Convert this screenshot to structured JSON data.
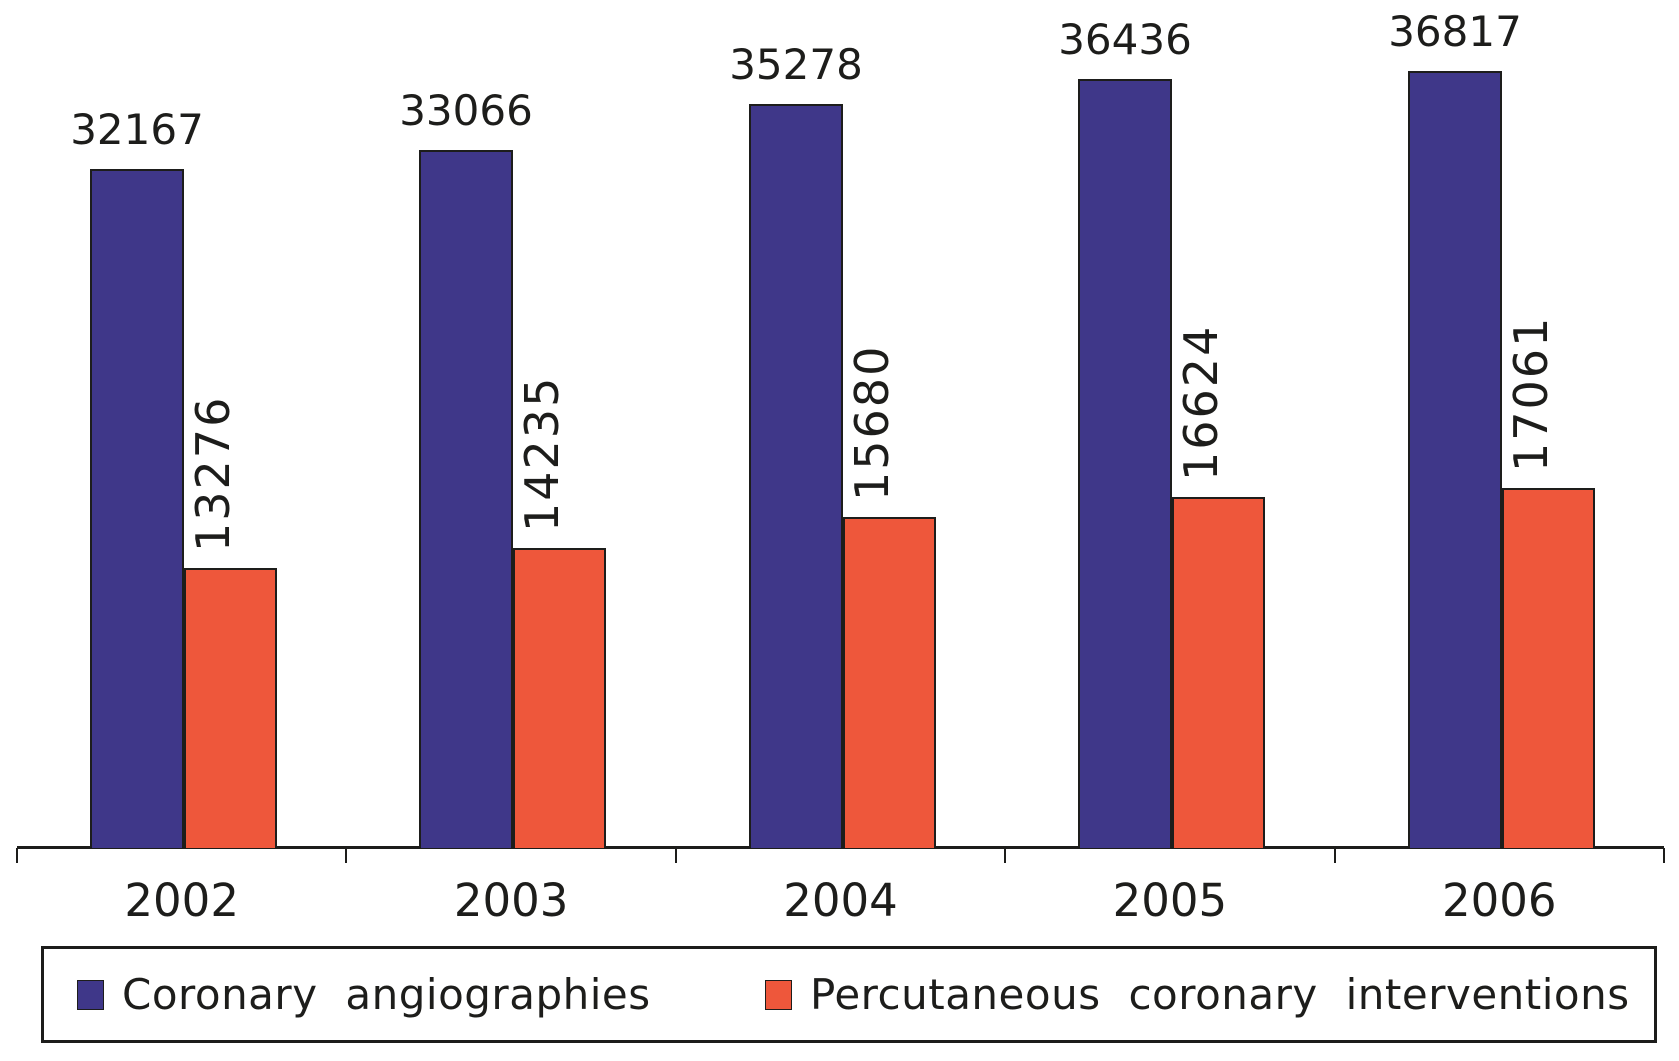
{
  "chart_data": {
    "type": "bar",
    "categories": [
      "2002",
      "2003",
      "2004",
      "2005",
      "2006"
    ],
    "series": [
      {
        "name": "Coronary angiographies",
        "color": "#3F3789",
        "values": [
          32167,
          33066,
          35278,
          36436,
          36817
        ],
        "value_label_orientation": "horizontal"
      },
      {
        "name": "Percutaneous coronary interventions",
        "color": "#EE573B",
        "values": [
          13276,
          14235,
          15680,
          16624,
          17061
        ],
        "value_label_orientation": "vertical"
      }
    ],
    "title": "",
    "xlabel": "",
    "ylabel": "",
    "ylim": [
      0,
      40000
    ],
    "grid": false,
    "y_axis_visible": false,
    "legend_position": "bottom",
    "bar_value_labels": true
  }
}
